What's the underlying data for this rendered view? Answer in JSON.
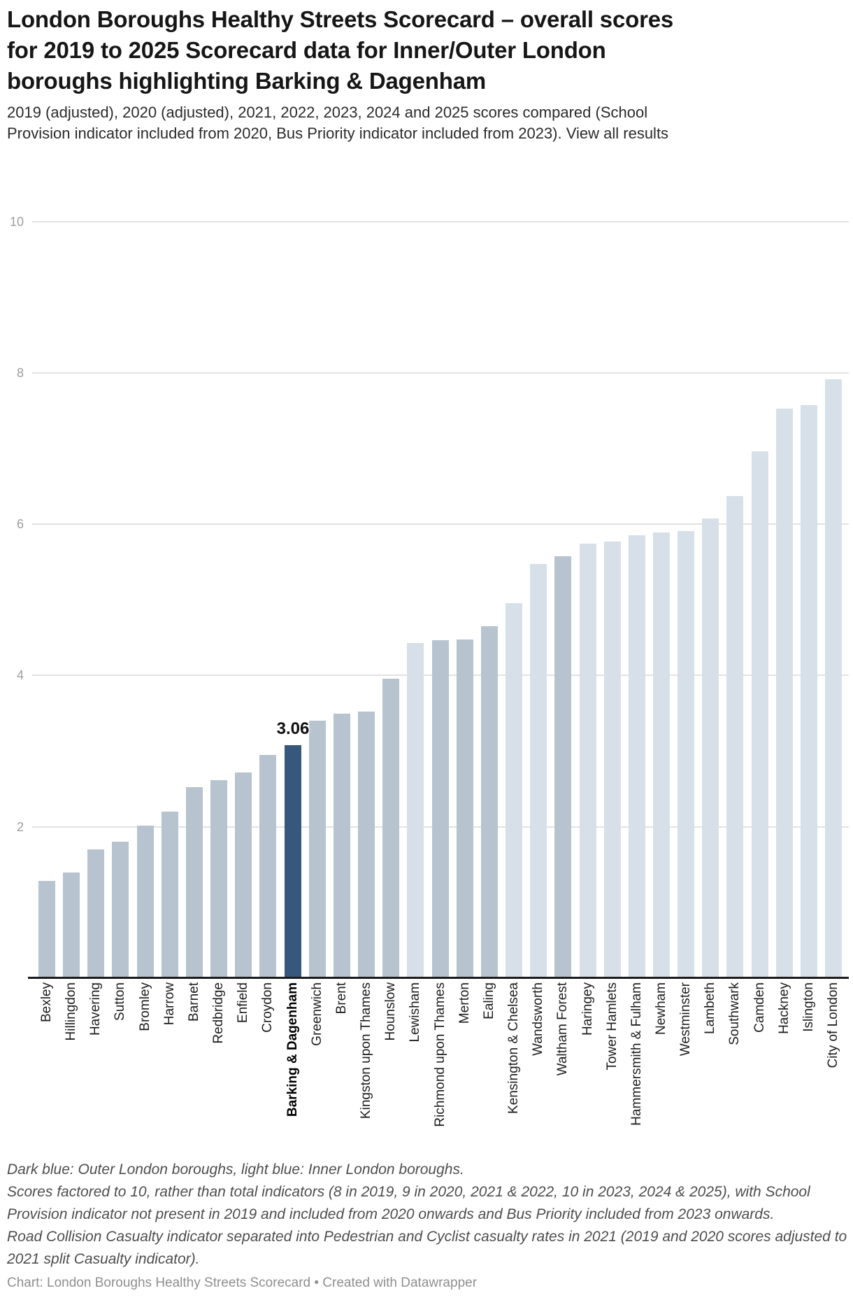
{
  "header": {
    "title": "London Boroughs Healthy Streets Scorecard – overall scores for 2019 to 2025 Scorecard data for Inner/Outer London boroughs highlighting Barking & Dagenham",
    "subtitle_text": "2019 (adjusted), 2020 (adjusted), 2021, 2022, 2023, 2024 and 2025 scores compared (School Provision indicator included from 2020, Bus Priority indicator included from 2023). ",
    "view_all_label": "View all results"
  },
  "chart_data": {
    "type": "bar",
    "title": "London Boroughs Healthy Streets Scorecard – overall scores for 2019 to 2025",
    "xlabel": "",
    "ylabel": "",
    "ylim": [
      0,
      10
    ],
    "yticks": [
      "2",
      "4",
      "6",
      "8",
      "10"
    ],
    "grid": true,
    "legend_position": "none",
    "categories": [
      "Bexley",
      "Hillingdon",
      "Havering",
      "Sutton",
      "Bromley",
      "Harrow",
      "Barnet",
      "Redbridge",
      "Enfield",
      "Croydon",
      "Barking & Dagenham",
      "Greenwich",
      "Brent",
      "Kingston upon Thames",
      "Hounslow",
      "Lewisham",
      "Richmond upon Thames",
      "Merton",
      "Ealing",
      "Kensington & Chelsea",
      "Wandsworth",
      "Waltham Forest",
      "Haringey",
      "Tower Hamlets",
      "Hammersmith & Fulham",
      "Newham",
      "Westminster",
      "Lambeth",
      "Southwark",
      "Camden",
      "Hackney",
      "Islington",
      "City of London"
    ],
    "values": [
      1.27,
      1.38,
      1.68,
      1.78,
      2.0,
      2.18,
      2.51,
      2.6,
      2.7,
      2.93,
      3.06,
      3.38,
      3.48,
      3.5,
      3.94,
      4.41,
      4.45,
      4.46,
      4.63,
      4.94,
      5.46,
      5.56,
      5.72,
      5.75,
      5.83,
      5.87,
      5.89,
      6.06,
      6.35,
      6.94,
      7.51,
      7.55,
      7.9
    ],
    "groups": [
      "outer",
      "outer",
      "outer",
      "outer",
      "outer",
      "outer",
      "outer",
      "outer",
      "outer",
      "outer",
      "highlight",
      "outer",
      "outer",
      "outer",
      "outer",
      "inner",
      "outer",
      "outer",
      "outer",
      "inner",
      "inner",
      "outer",
      "inner",
      "inner",
      "inner",
      "inner",
      "inner",
      "inner",
      "inner",
      "inner",
      "inner",
      "inner",
      "inner"
    ],
    "highlighted_category": "Barking & Dagenham",
    "data_label": {
      "category": "Barking & Dagenham",
      "text": "3.06"
    },
    "bar_colors": {
      "outer": "#b7c3ce",
      "inner": "#d7e0e8",
      "highlight": "#35587c"
    }
  },
  "footer": {
    "notes": [
      "Dark blue: Outer London boroughs, light blue: Inner London boroughs.",
      "Scores factored to 10, rather than total indicators (8 in 2019, 9 in 2020, 2021 & 2022, 10 in 2023, 2024 & 2025), with School Provision indicator not present in 2019 and included from 2020 onwards and Bus Priority included from 2023 onwards.",
      "Road Collision Casualty indicator separated into Pedestrian and Cyclist casualty rates in 2021 (2019 and 2020 scores adjusted to 2021 split Casualty indicator)."
    ],
    "byline_prefix": "Chart: ",
    "byline_source": "London Boroughs Healthy Streets Scorecard",
    "byline_sep": " • Created with ",
    "byline_tool": "Datawrapper"
  }
}
